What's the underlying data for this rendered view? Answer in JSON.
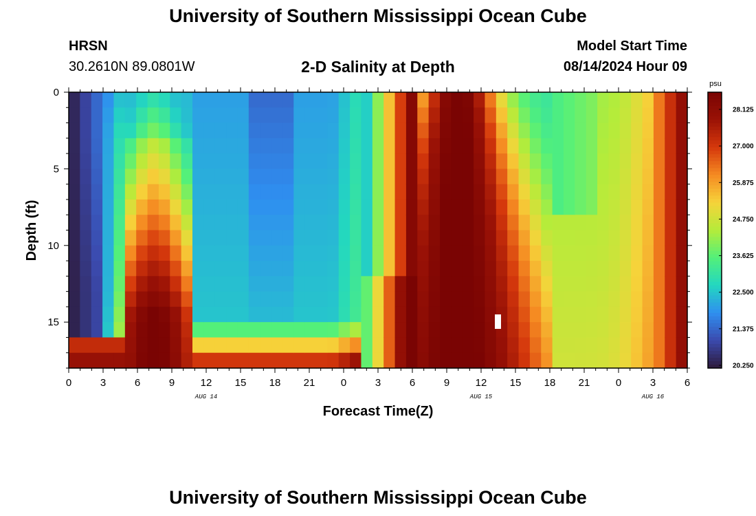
{
  "header": {
    "title": "University of Southern Mississippi Ocean Cube",
    "station": "HRSN",
    "coordinates": "30.2610N  89.0801W",
    "plot_title": "2-D Salinity at Depth",
    "model_start_label": "Model Start Time",
    "model_start_value": "08/14/2024 Hour 09"
  },
  "footer": {
    "title": "University of Southern Mississippi Ocean Cube"
  },
  "colors": {
    "colormap": [
      "#2d1a3b",
      "#3b4aae",
      "#2f8ff0",
      "#23d7c0",
      "#53f07a",
      "#b5ec3a",
      "#f6d33a",
      "#f58a22",
      "#d5380c",
      "#9a1206",
      "#7a0403"
    ]
  },
  "chart_data": {
    "type": "heatmap",
    "title": "2-D Salinity at Depth",
    "xlabel": "Forecast Time(Z)",
    "ylabel": "Depth (ft)",
    "x_ticks": [
      {
        "hour": 0,
        "label": "0"
      },
      {
        "hour": 3,
        "label": "3"
      },
      {
        "hour": 6,
        "label": "6"
      },
      {
        "hour": 9,
        "label": "9"
      },
      {
        "hour": 12,
        "label": "12"
      },
      {
        "hour": 15,
        "label": "15"
      },
      {
        "hour": 18,
        "label": "18"
      },
      {
        "hour": 21,
        "label": "21"
      },
      {
        "hour": 24,
        "label": "0"
      },
      {
        "hour": 27,
        "label": "3"
      },
      {
        "hour": 30,
        "label": "6"
      },
      {
        "hour": 33,
        "label": "9"
      },
      {
        "hour": 36,
        "label": "12"
      },
      {
        "hour": 39,
        "label": "15"
      },
      {
        "hour": 42,
        "label": "18"
      },
      {
        "hour": 45,
        "label": "21"
      },
      {
        "hour": 48,
        "label": "0"
      },
      {
        "hour": 51,
        "label": "3"
      },
      {
        "hour": 54,
        "label": "6"
      }
    ],
    "date_labels": [
      {
        "hour": 12,
        "label": "AUG 14"
      },
      {
        "hour": 36,
        "label": "AUG 15"
      },
      {
        "hour": 51,
        "label": "AUG 16"
      }
    ],
    "xlim": [
      0,
      54
    ],
    "y_ticks": [
      0,
      5,
      10,
      15
    ],
    "ylim": [
      0,
      18
    ],
    "colorbar": {
      "unit": "psu",
      "min": 20.25,
      "max": 28.125,
      "ticks": [
        "28.125",
        "27.000",
        "25.875",
        "24.750",
        "23.625",
        "22.500",
        "21.375",
        "20.250"
      ]
    },
    "grid": {
      "n_time": 55,
      "n_depth": 18
    },
    "description": "Salinity (psu) vs depth and forecast hour; low salinity (~20.3) near hours 0-3 at surface, high (~28) lens near hours 6-9 at depth, fresher band hours 12-27, very saline core hours 30-42, moderate 24-26 afterwards."
  }
}
